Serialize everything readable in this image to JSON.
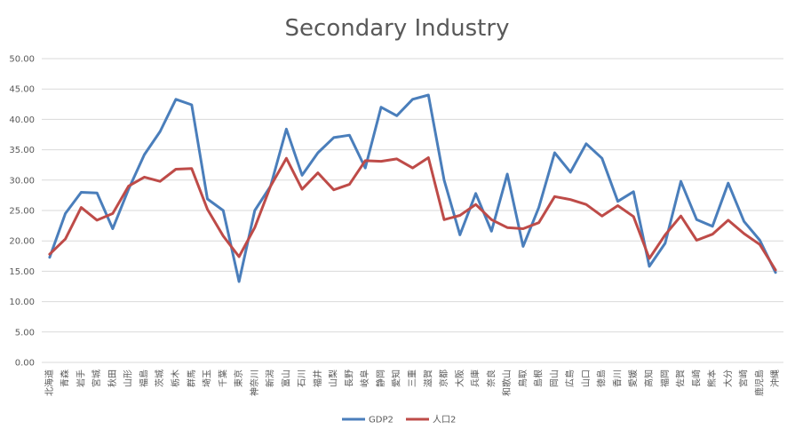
{
  "chart_data": {
    "type": "line",
    "title": "Secondary Industry",
    "xlabel": "",
    "ylabel": "",
    "ylim": [
      0,
      50
    ],
    "yticks": [
      "0.00",
      "5.00",
      "10.00",
      "15.00",
      "20.00",
      "25.00",
      "30.00",
      "35.00",
      "40.00",
      "45.00",
      "50.00"
    ],
    "grid": true,
    "legend_position": "bottom",
    "categories": [
      "北海道",
      "青森",
      "岩手",
      "宮城",
      "秋田",
      "山形",
      "福島",
      "茨城",
      "栃木",
      "群馬",
      "埼玉",
      "千葉",
      "東京",
      "神奈川",
      "新潟",
      "富山",
      "石川",
      "福井",
      "山梨",
      "長野",
      "岐阜",
      "静岡",
      "愛知",
      "三重",
      "滋賀",
      "京都",
      "大阪",
      "兵庫",
      "奈良",
      "和歌山",
      "鳥取",
      "島根",
      "岡山",
      "広島",
      "山口",
      "徳島",
      "香川",
      "愛媛",
      "高知",
      "福岡",
      "佐賀",
      "長崎",
      "熊本",
      "大分",
      "宮崎",
      "鹿児島",
      "沖縄"
    ],
    "series": [
      {
        "name": "GDP2",
        "color": "#4a7ebb",
        "values": [
          17.3,
          24.5,
          28.0,
          27.9,
          22.0,
          28.5,
          34.2,
          38.0,
          43.3,
          42.4,
          26.9,
          25.0,
          13.3,
          25.0,
          29.0,
          38.4,
          30.8,
          34.5,
          37.0,
          37.4,
          32.0,
          42.0,
          40.6,
          43.3,
          44.0,
          30.0,
          21.0,
          27.8,
          21.6,
          31.0,
          19.1,
          25.5,
          34.5,
          31.3,
          36.0,
          33.6,
          26.5,
          28.1,
          15.8,
          19.6,
          29.8,
          23.5,
          22.4,
          29.5,
          23.2,
          20.1,
          14.8
        ]
      },
      {
        "name": "人口2",
        "color": "#be4b48",
        "values": [
          17.8,
          20.3,
          25.5,
          23.4,
          24.5,
          29.0,
          30.5,
          29.8,
          31.8,
          31.9,
          25.2,
          20.8,
          17.4,
          22.2,
          29.0,
          33.6,
          28.5,
          31.2,
          28.4,
          29.3,
          33.2,
          33.1,
          33.5,
          32.0,
          33.7,
          23.5,
          24.2,
          26.0,
          23.5,
          22.2,
          22.0,
          23.0,
          27.3,
          26.8,
          26.0,
          24.1,
          25.8,
          24.0,
          17.1,
          21.0,
          24.1,
          20.1,
          21.1,
          23.4,
          21.2,
          19.4,
          15.2
        ]
      }
    ]
  }
}
